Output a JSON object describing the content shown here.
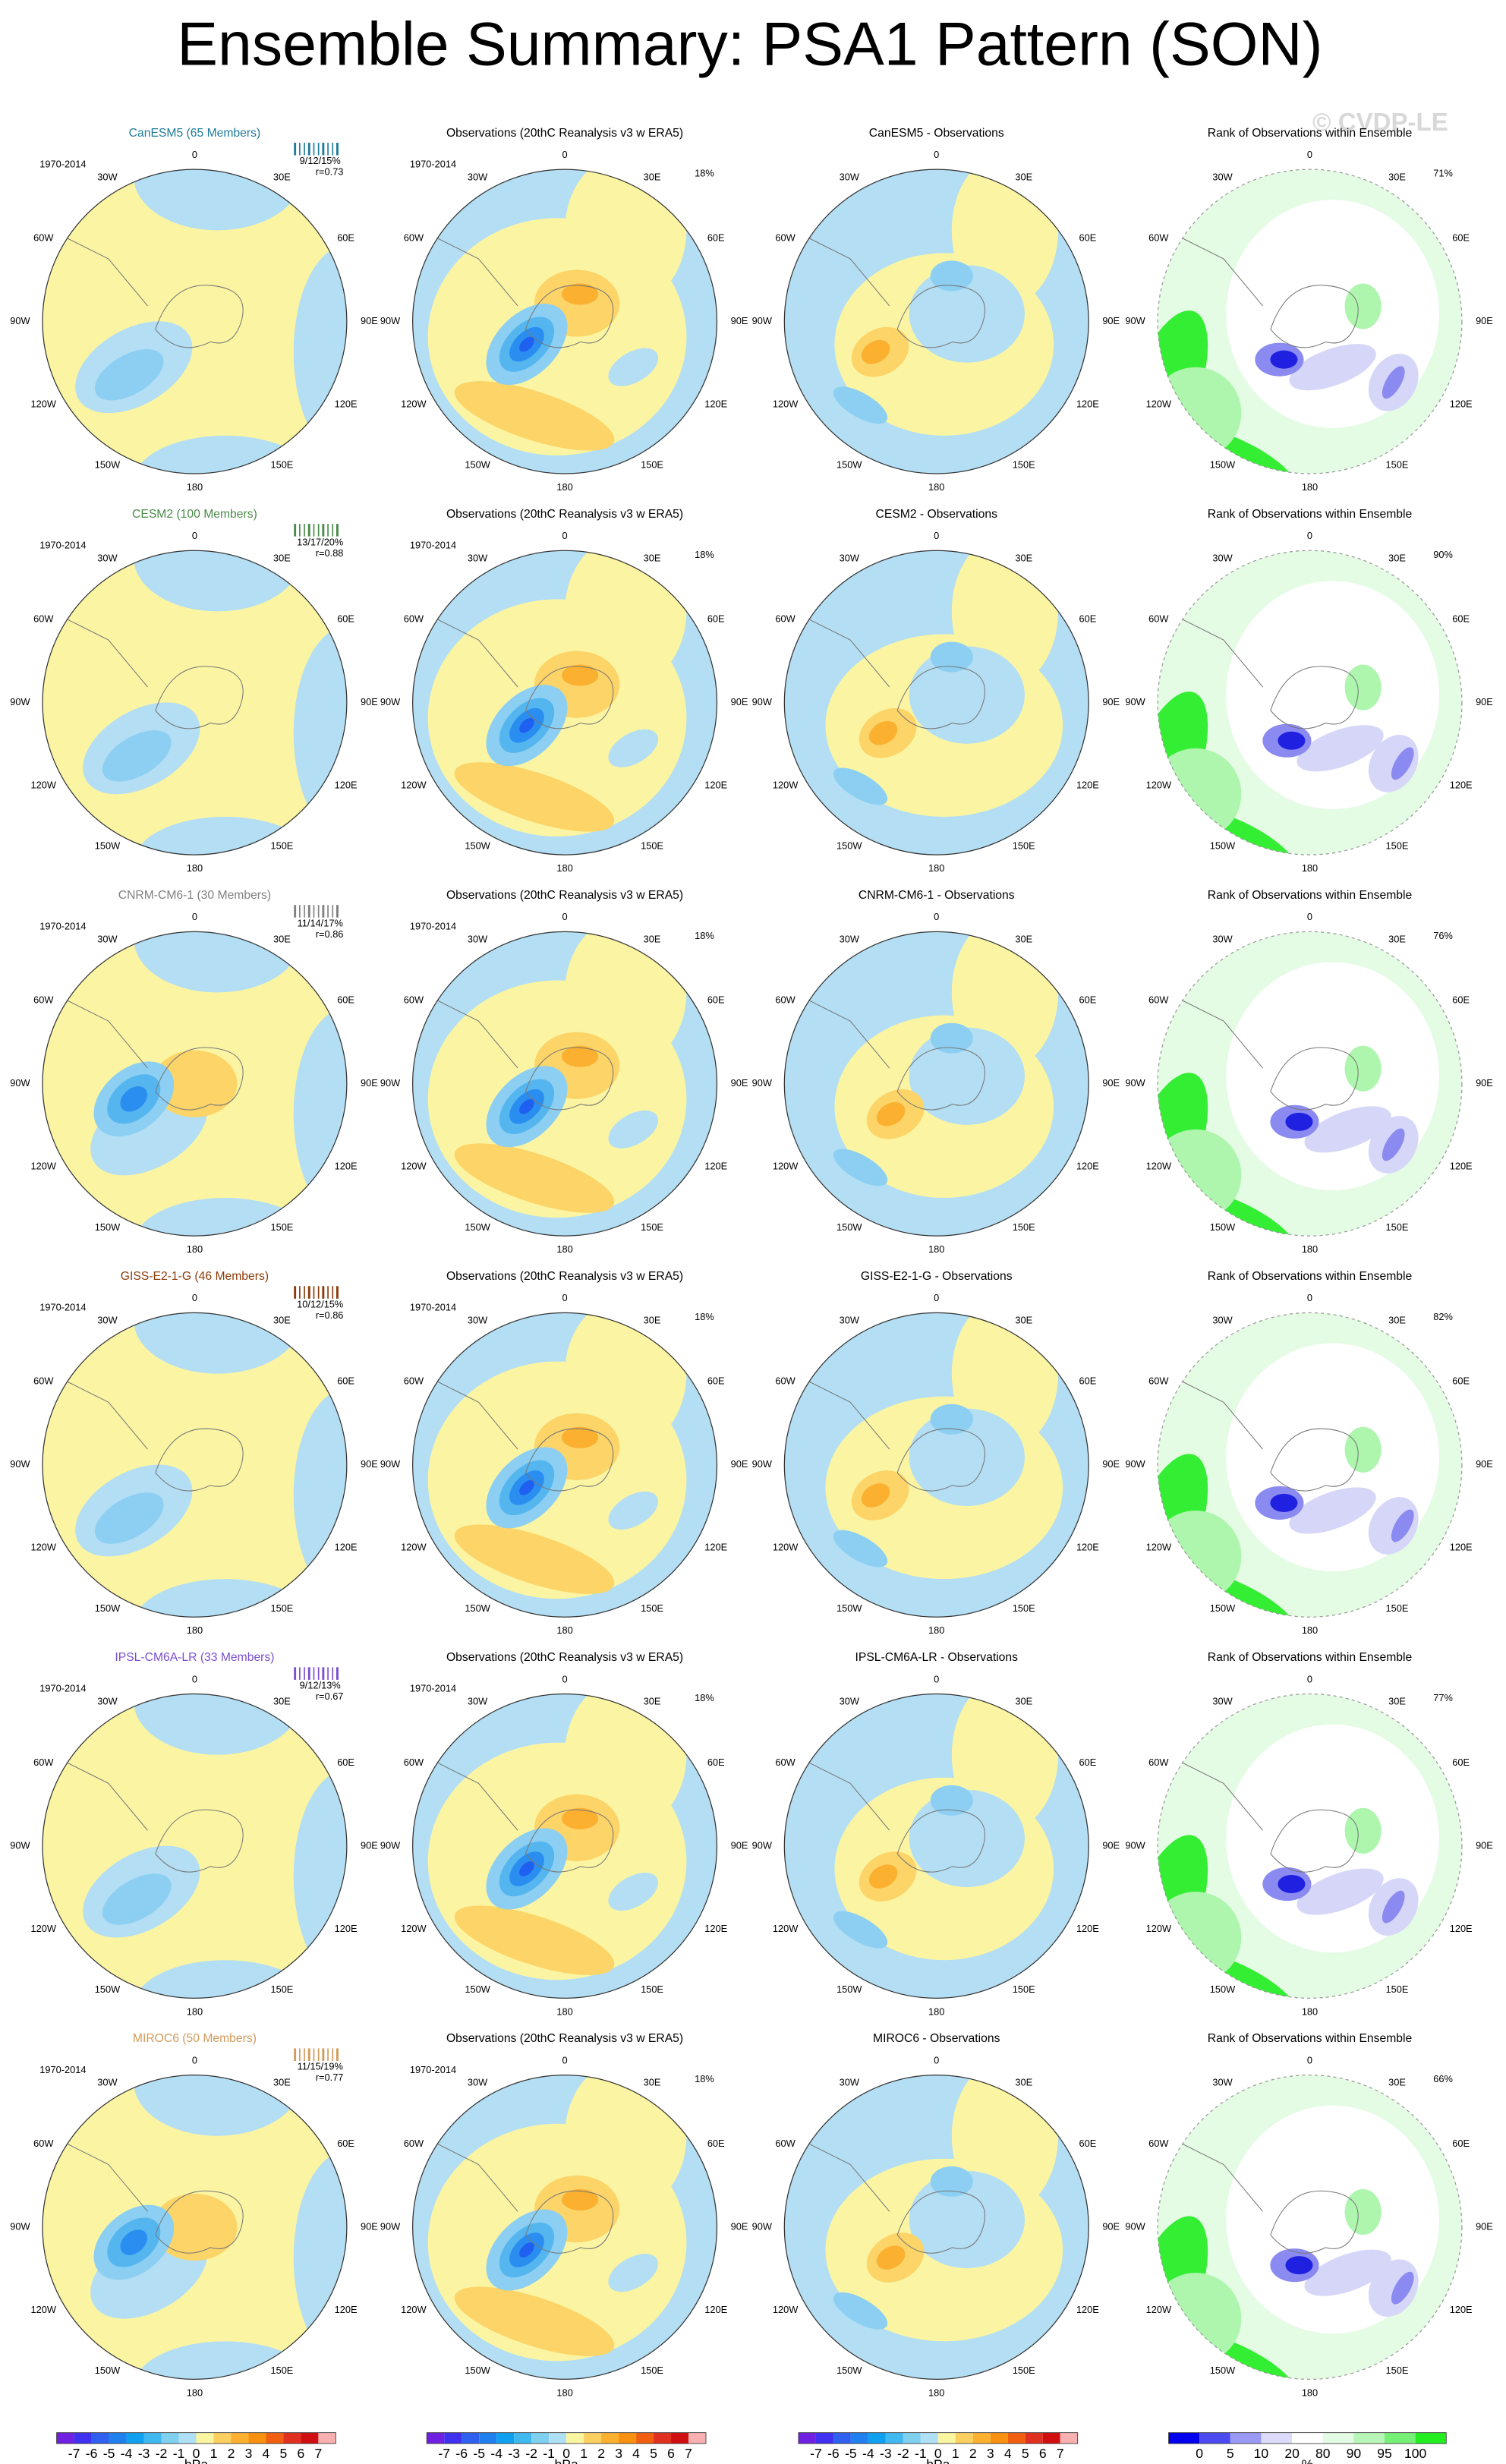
{
  "title": "Ensemble Summary: PSA1 Pattern (SON)",
  "watermark": "© CVDP-LE",
  "period": "1970-2014",
  "obs_title": "Observations (20thC Reanalysis v3 w ERA5)",
  "obs_pct": "18%",
  "rank_title": "Rank of Observations within Ensemble",
  "lon_labels": [
    "0",
    "30E",
    "60E",
    "90E",
    "120E",
    "150E",
    "180",
    "150W",
    "120W",
    "90W",
    "60W",
    "30W"
  ],
  "rows": [
    {
      "model": "CanESM5 (65 Members)",
      "color": "#1f7b9b",
      "stats": "9/12/15%",
      "r": "r=0.73",
      "diff_title": "CanESM5 - Observations",
      "rank_pct": "71%"
    },
    {
      "model": "CESM2 (100 Members)",
      "color": "#4a8a4a",
      "stats": "13/17/20%",
      "r": "r=0.88",
      "diff_title": "CESM2 - Observations",
      "rank_pct": "90%"
    },
    {
      "model": "CNRM-CM6-1 (30 Members)",
      "color": "#808080",
      "stats": "11/14/17%",
      "r": "r=0.86",
      "diff_title": "CNRM-CM6-1 - Observations",
      "rank_pct": "76%"
    },
    {
      "model": "GISS-E2-1-G (46 Members)",
      "color": "#8b3a0a",
      "stats": "10/12/15%",
      "r": "r=0.86",
      "diff_title": "GISS-E2-1-G - Observations",
      "rank_pct": "82%"
    },
    {
      "model": "IPSL-CM6A-LR (33 Members)",
      "color": "#7a4fd0",
      "stats": "9/12/13%",
      "r": "r=0.67",
      "diff_title": "IPSL-CM6A-LR - Observations",
      "rank_pct": "77%"
    },
    {
      "model": "MIROC6 (50 Members)",
      "color": "#d29a5a",
      "stats": "11/15/19%",
      "r": "r=0.77",
      "diff_title": "MIROC6 - Observations",
      "rank_pct": "66%"
    }
  ],
  "colorbar": {
    "labels": [
      "-7",
      "-6",
      "-5",
      "-4",
      "-3",
      "-2",
      "-1",
      "0",
      "1",
      "2",
      "3",
      "4",
      "5",
      "6",
      "7"
    ],
    "unit": "hPa"
  },
  "rank_colorbar": {
    "labels": [
      "0",
      "5",
      "10",
      "20",
      "80",
      "90",
      "95",
      "100"
    ],
    "unit": "%"
  }
}
